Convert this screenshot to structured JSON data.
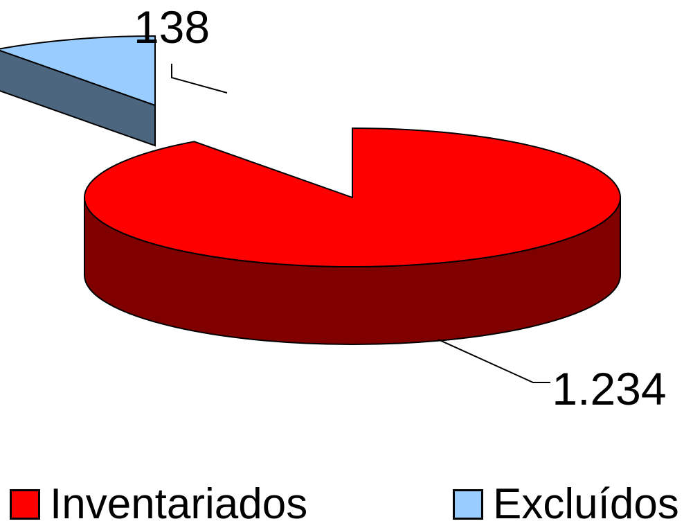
{
  "chart_data": {
    "type": "pie",
    "three_d": true,
    "categories": [
      "Inventariados",
      "Excluídos"
    ],
    "values": [
      1234,
      138
    ],
    "data_labels": [
      "1.234",
      "138"
    ],
    "colors": {
      "Inventariados": {
        "top": "#ff0000",
        "side": "#800000"
      },
      "Excluídos": {
        "top": "#99ccff",
        "side": "#4d6680"
      }
    },
    "exploded": "Excluídos",
    "legend_position": "bottom"
  },
  "legend": {
    "items": [
      {
        "label": "Inventariados",
        "color": "#ff0000"
      },
      {
        "label": "Excluídos",
        "color": "#99ccff"
      }
    ]
  }
}
